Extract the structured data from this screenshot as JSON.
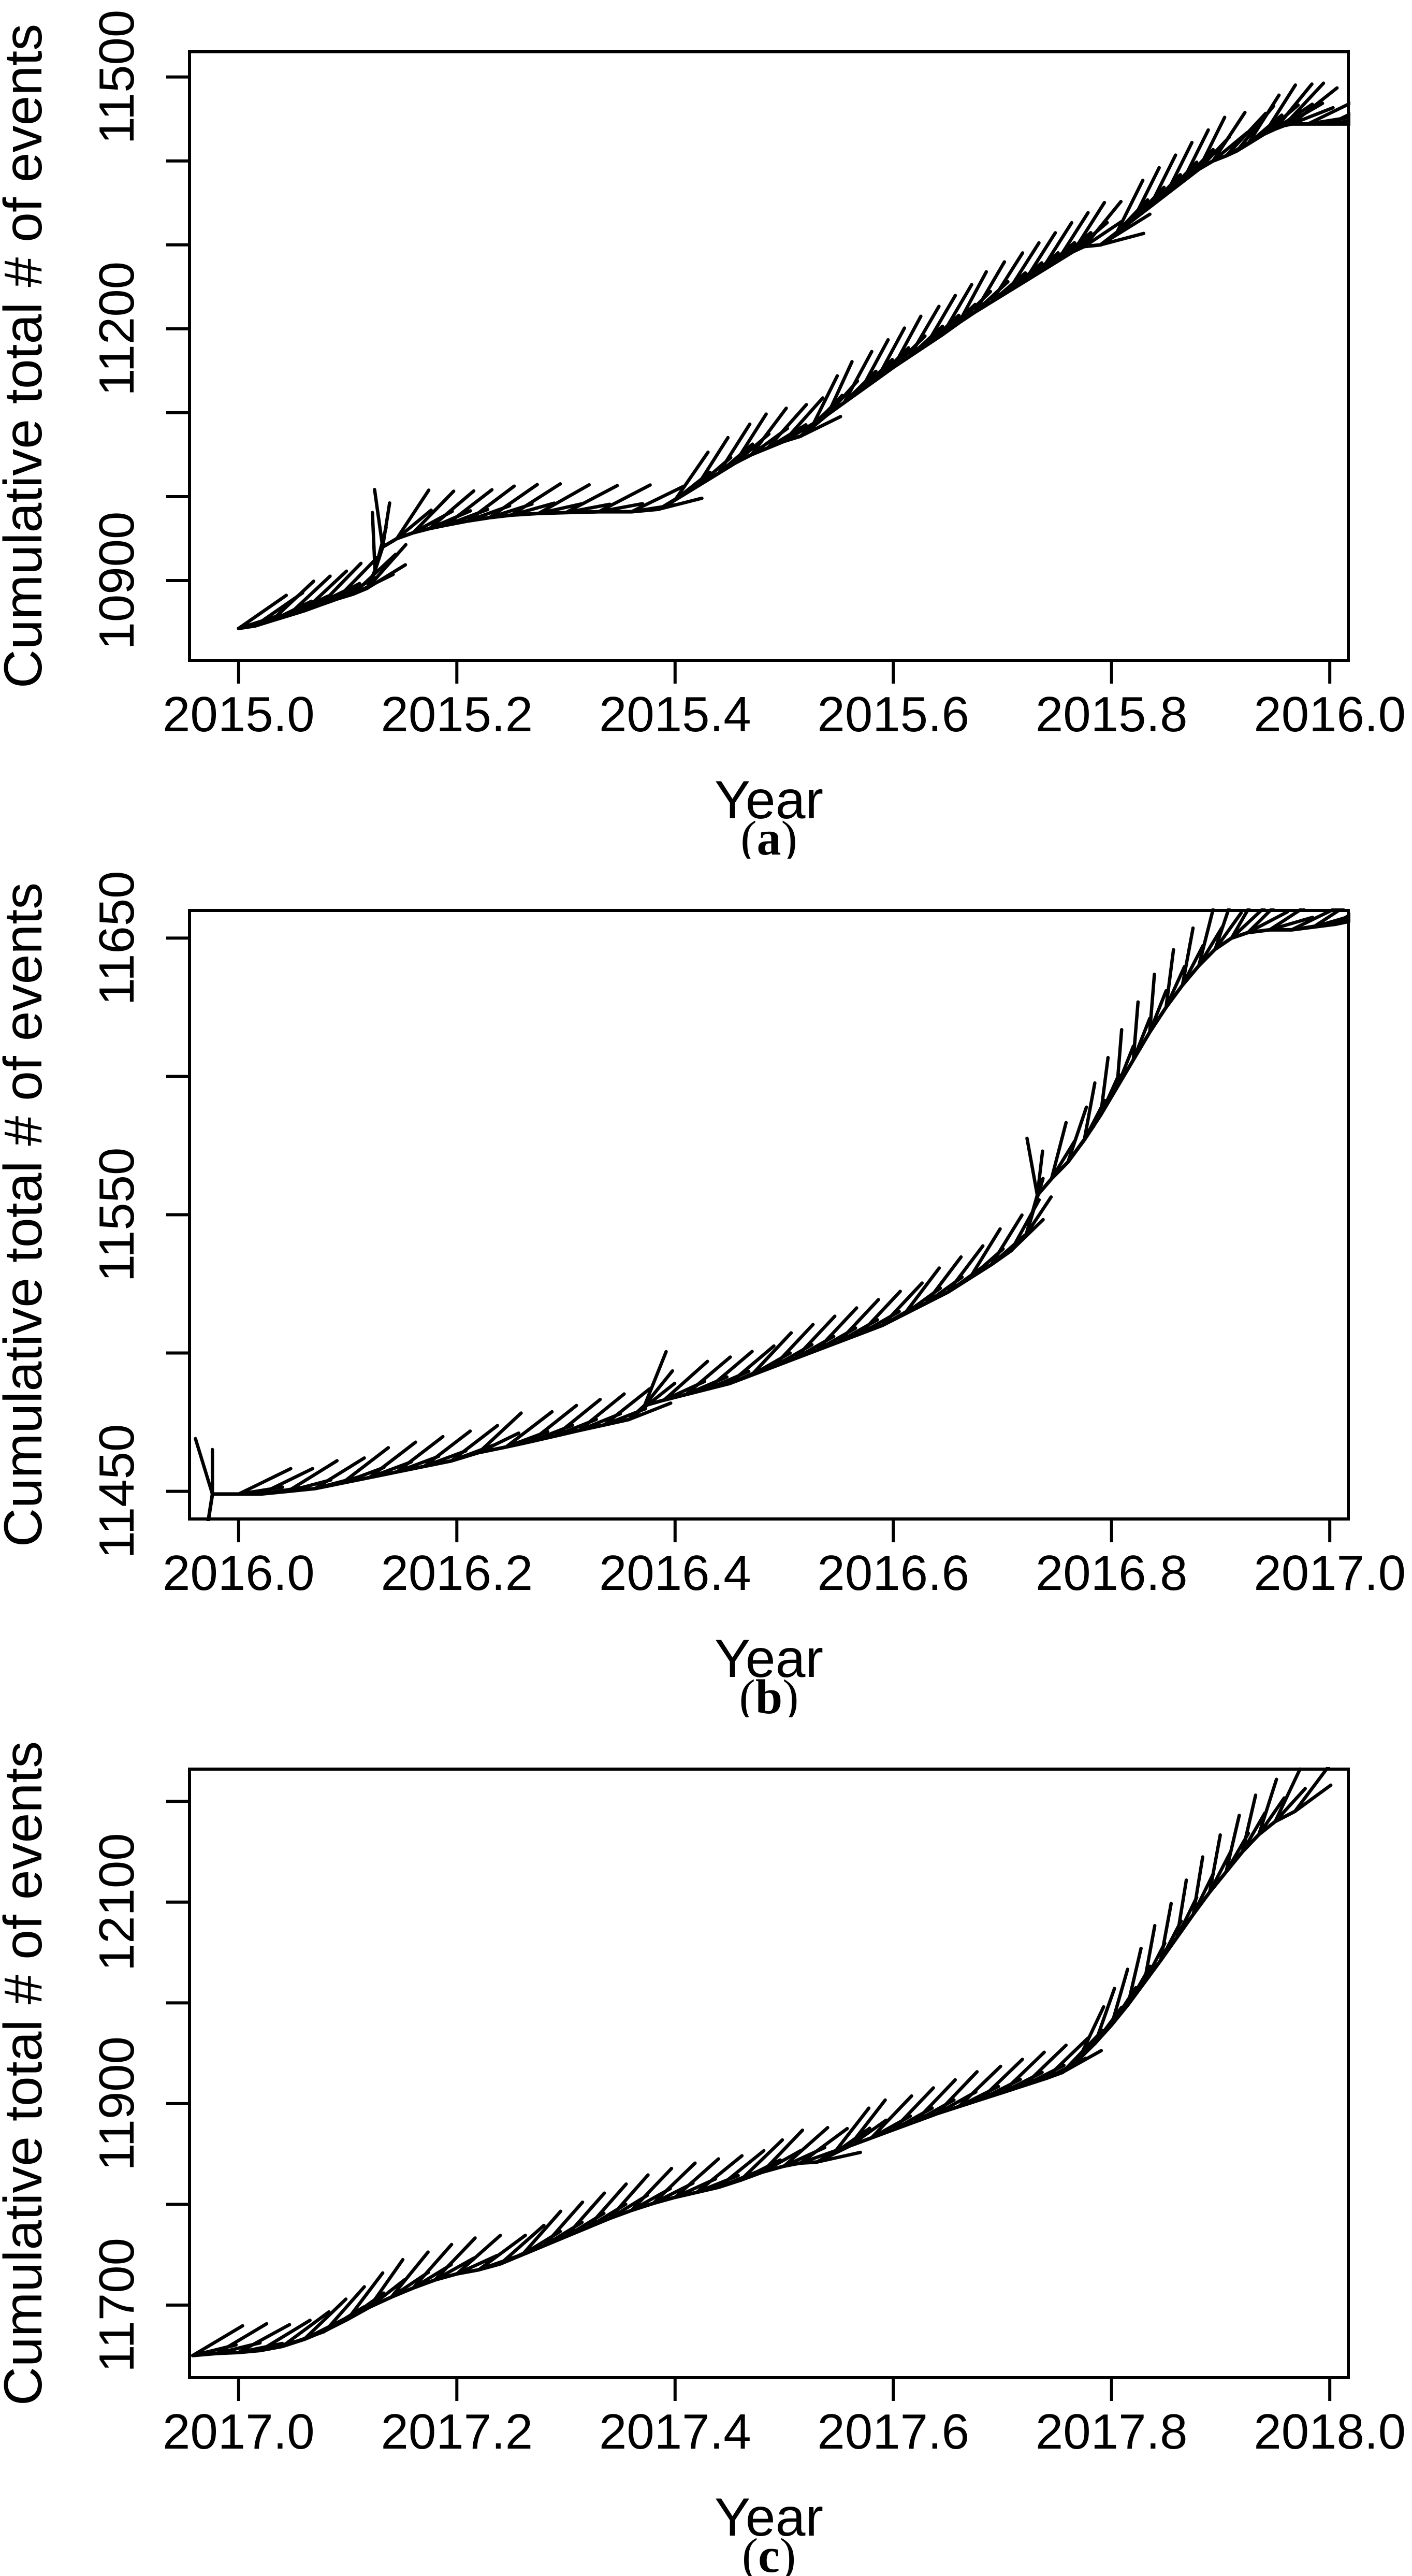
{
  "figure": {
    "background": "#ffffff",
    "ink": "#000000"
  },
  "chart_data": [
    {
      "type": "line",
      "panel": "a",
      "caption": {
        "open": "(",
        "letter": "a",
        "close": ")"
      },
      "xlabel": "Year",
      "ylabel": "Cumulative total # of events",
      "xlim": [
        2014.955,
        2016.017
      ],
      "ylim": [
        10805,
        11530
      ],
      "grid": false,
      "legend": "none",
      "xticks": [
        2015.0,
        2015.2,
        2015.4,
        2015.6,
        2015.8,
        2016.0
      ],
      "xtick_labels": [
        "2015.0",
        "2015.2",
        "2015.4",
        "2015.6",
        "2015.8",
        "2016.0"
      ],
      "yticks": [
        10900,
        11000,
        11100,
        11200,
        11300,
        11400,
        11500
      ],
      "ytick_labels": [
        "10900",
        "",
        "",
        "11200",
        "",
        "",
        "11500"
      ],
      "series": [
        {
          "name": "cumulative-total-events",
          "x": [
            2015.0,
            2015.015,
            2015.03,
            2015.045,
            2015.06,
            2015.075,
            2015.09,
            2015.105,
            2015.118,
            2015.125,
            2015.132,
            2015.145,
            2015.16,
            2015.175,
            2015.19,
            2015.21,
            2015.23,
            2015.25,
            2015.275,
            2015.3,
            2015.33,
            2015.36,
            2015.385,
            2015.4,
            2015.42,
            2015.44,
            2015.455,
            2015.47,
            2015.485,
            2015.5,
            2015.515,
            2015.525,
            2015.54,
            2015.555,
            2015.57,
            2015.585,
            2015.6,
            2015.615,
            2015.63,
            2015.645,
            2015.66,
            2015.675,
            2015.69,
            2015.705,
            2015.72,
            2015.735,
            2015.75,
            2015.765,
            2015.775,
            2015.79,
            2015.805,
            2015.82,
            2015.835,
            2015.85,
            2015.865,
            2015.88,
            2015.893,
            2015.905,
            2015.915,
            2015.925,
            2015.94,
            2015.95,
            2015.958,
            2015.965,
            2015.98,
            2016.0,
            2016.018
          ],
          "y": [
            10843,
            10846,
            10852,
            10858,
            10864,
            10871,
            10878,
            10884,
            10891,
            10912,
            10940,
            10950,
            10957,
            10962,
            10966,
            10971,
            10975,
            10978,
            10980,
            10981,
            10982,
            10982,
            10985,
            10996,
            11012,
            11028,
            11040,
            11050,
            11058,
            11066,
            11072,
            11082,
            11098,
            11112,
            11126,
            11140,
            11154,
            11167,
            11180,
            11193,
            11207,
            11220,
            11232,
            11244,
            11256,
            11268,
            11280,
            11292,
            11298,
            11300,
            11315,
            11330,
            11345,
            11360,
            11375,
            11390,
            11400,
            11406,
            11412,
            11420,
            11432,
            11438,
            11442,
            11444,
            11444,
            11444,
            11444
          ]
        }
      ]
    },
    {
      "type": "line",
      "panel": "b",
      "caption": {
        "open": "(",
        "letter": "b",
        "close": ")"
      },
      "xlabel": "Year",
      "ylabel": "Cumulative total # of events",
      "xlim": [
        2015.955,
        2017.017
      ],
      "ylim": [
        11440,
        11660
      ],
      "grid": false,
      "legend": "none",
      "xticks": [
        2016.0,
        2016.2,
        2016.4,
        2016.6,
        2016.8,
        2017.0
      ],
      "xtick_labels": [
        "2016.0",
        "2016.2",
        "2016.4",
        "2016.6",
        "2016.8",
        "2017.0"
      ],
      "yticks": [
        11450,
        11500,
        11550,
        11600,
        11650
      ],
      "ytick_labels": [
        "11450",
        "",
        "11550",
        "",
        "11650"
      ],
      "series": [
        {
          "name": "cumulative-total-events",
          "x": [
            2015.962,
            2015.976,
            2016.0,
            2016.02,
            2016.045,
            2016.07,
            2016.095,
            2016.12,
            2016.145,
            2016.17,
            2016.195,
            2016.22,
            2016.245,
            2016.268,
            2016.29,
            2016.312,
            2016.335,
            2016.358,
            2016.372,
            2016.39,
            2016.41,
            2016.43,
            2016.45,
            2016.47,
            2016.49,
            2016.51,
            2016.53,
            2016.55,
            2016.57,
            2016.59,
            2016.61,
            2016.63,
            2016.65,
            2016.67,
            2016.69,
            2016.708,
            2016.722,
            2016.732,
            2016.745,
            2016.76,
            2016.775,
            2016.79,
            2016.805,
            2016.82,
            2016.835,
            2016.85,
            2016.865,
            2016.88,
            2016.895,
            2016.91,
            2016.925,
            2016.945,
            2016.965,
            2016.985,
            2017.005,
            2017.017
          ],
          "y": [
            11414,
            11449,
            11449,
            11449,
            11450,
            11451,
            11453,
            11455,
            11457,
            11459,
            11461,
            11464,
            11466,
            11468,
            11470,
            11472,
            11474,
            11476,
            11481,
            11483,
            11485,
            11487,
            11489,
            11492,
            11495,
            11498,
            11501,
            11504,
            11507,
            11510,
            11514,
            11518,
            11522,
            11527,
            11532,
            11537,
            11543,
            11557,
            11563,
            11569,
            11577,
            11586,
            11596,
            11606,
            11616,
            11625,
            11633,
            11640,
            11646,
            11650,
            11652,
            11653,
            11653,
            11654,
            11655,
            11656
          ]
        }
      ]
    },
    {
      "type": "line",
      "panel": "c",
      "caption": {
        "open": "(",
        "letter": "c",
        "close": ")"
      },
      "xlabel": "Year",
      "ylabel": "Cumulative total # of events",
      "xlim": [
        2016.955,
        2018.017
      ],
      "ylim": [
        11628,
        12232
      ],
      "grid": false,
      "legend": "none",
      "xticks": [
        2017.0,
        2017.2,
        2017.4,
        2017.6,
        2017.8,
        2018.0
      ],
      "xtick_labels": [
        "2017.0",
        "2017.2",
        "2017.4",
        "2017.6",
        "2017.8",
        "2018.0"
      ],
      "yticks": [
        11700,
        11800,
        11900,
        12000,
        12100,
        12200
      ],
      "ytick_labels": [
        "11700",
        "",
        "11900",
        "",
        "12100",
        ""
      ],
      "series": [
        {
          "name": "cumulative-total-events",
          "x": [
            2016.958,
            2016.98,
            2017.0,
            2017.02,
            2017.04,
            2017.06,
            2017.08,
            2017.1,
            2017.12,
            2017.14,
            2017.16,
            2017.18,
            2017.2,
            2017.22,
            2017.24,
            2017.26,
            2017.28,
            2017.3,
            2017.32,
            2017.34,
            2017.36,
            2017.38,
            2017.4,
            2017.42,
            2017.44,
            2017.46,
            2017.48,
            2017.5,
            2017.515,
            2017.53,
            2017.545,
            2017.56,
            2017.58,
            2017.6,
            2017.62,
            2017.64,
            2017.66,
            2017.68,
            2017.7,
            2017.72,
            2017.74,
            2017.755,
            2017.77,
            2017.785,
            2017.8,
            2017.815,
            2017.83,
            2017.845,
            2017.86,
            2017.875,
            2017.89,
            2017.905,
            2017.92,
            2017.935,
            2017.95,
            2017.968
          ],
          "y": [
            11650,
            11652,
            11653,
            11655,
            11659,
            11666,
            11675,
            11686,
            11698,
            11708,
            11717,
            11725,
            11731,
            11735,
            11741,
            11750,
            11759,
            11768,
            11777,
            11786,
            11794,
            11801,
            11807,
            11812,
            11817,
            11824,
            11832,
            11838,
            11841,
            11842,
            11850,
            11858,
            11866,
            11874,
            11882,
            11890,
            11897,
            11904,
            11911,
            11918,
            11925,
            11931,
            11944,
            11960,
            11978,
            11998,
            12020,
            12042,
            12065,
            12088,
            12110,
            12130,
            12150,
            12167,
            12180,
            12190
          ]
        }
      ]
    }
  ]
}
